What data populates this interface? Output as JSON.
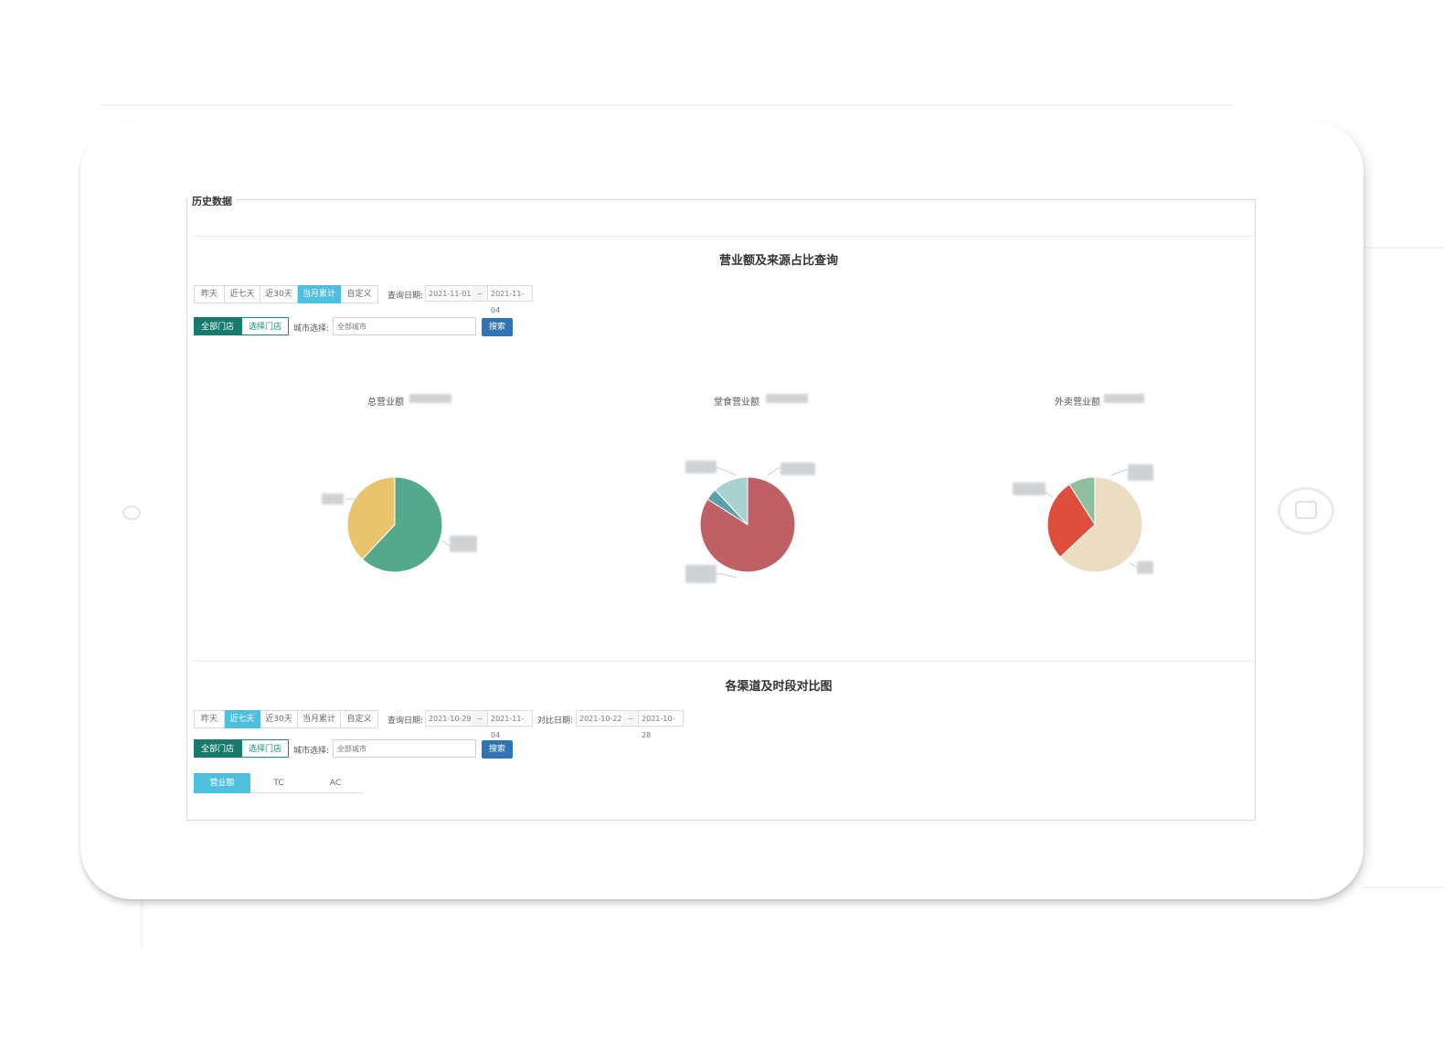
{
  "page": {
    "tab_title": "历史数据"
  },
  "section1": {
    "title": "营业额及来源占比查询",
    "range_buttons": [
      {
        "label": "昨天",
        "active": false
      },
      {
        "label": "近七天",
        "active": false
      },
      {
        "label": "近30天",
        "active": false
      },
      {
        "label": "当月累计",
        "active": true
      },
      {
        "label": "自定义",
        "active": false
      }
    ],
    "query_date_label": "查询日期:",
    "date_from": "2021-11-01",
    "date_to": "2021-11-04",
    "date_sep": "~",
    "store_seg": [
      "全部门店",
      "选择门店"
    ],
    "city_label": "城市选择:",
    "city_value": "全部城市",
    "search_label": "搜索"
  },
  "charts": {
    "pie1": {
      "title": "总营业额",
      "colors": [
        "#54a98c",
        "#e8c46c"
      ],
      "fractions": [
        0.62,
        0.38
      ]
    },
    "pie2": {
      "title": "堂食营业额",
      "colors": [
        "#be6064",
        "#5b9fa8",
        "#a9d1cf"
      ],
      "fractions": [
        0.84,
        0.04,
        0.12
      ]
    },
    "pie3": {
      "title": "外卖营业额",
      "colors": [
        "#ecdcc2",
        "#df4e3c",
        "#8ebf9e"
      ],
      "fractions": [
        0.63,
        0.28,
        0.09
      ]
    }
  },
  "section2": {
    "title": "各渠道及时段对比图",
    "range_buttons": [
      {
        "label": "昨天",
        "active": false
      },
      {
        "label": "近七天",
        "active": true
      },
      {
        "label": "近30天",
        "active": false
      },
      {
        "label": "当月累计",
        "active": false
      },
      {
        "label": "自定义",
        "active": false
      }
    ],
    "query_date_label": "查询日期:",
    "date_from": "2021-10-29",
    "date_to": "2021-11-04",
    "compare_date_label": "对比日期:",
    "compare_from": "2021-10-22",
    "compare_to": "2021-10-28",
    "date_sep": "~",
    "store_seg": [
      "全部门店",
      "选择门店"
    ],
    "city_label": "城市选择:",
    "city_value": "全部城市",
    "search_label": "搜索",
    "metric_tabs": [
      {
        "label": "营业额",
        "active": true
      },
      {
        "label": "TC",
        "active": false
      },
      {
        "label": "AC",
        "active": false
      }
    ]
  }
}
